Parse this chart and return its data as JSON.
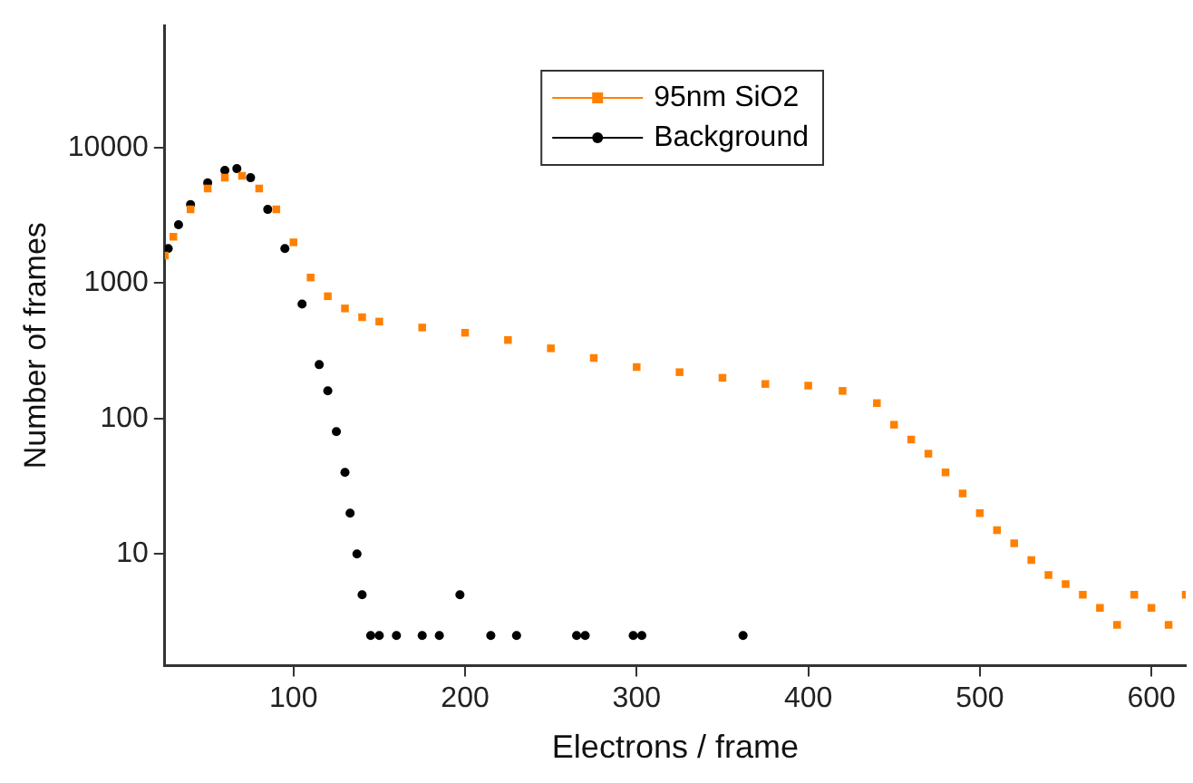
{
  "chart_data": {
    "type": "scatter",
    "xlabel": "Electrons / frame",
    "ylabel": "Number of frames",
    "log": "y",
    "xlim": [
      25,
      620
    ],
    "ylim": [
      1.5,
      80000
    ],
    "xticks": [
      100,
      200,
      300,
      400,
      500,
      600
    ],
    "yticks": [
      10,
      100,
      1000,
      10000
    ],
    "grid": false,
    "legend": "top right",
    "series": [
      {
        "name": "95nm SiO2",
        "color": "#ff8000",
        "marker": "square",
        "x": [
          25,
          30,
          40,
          50,
          60,
          70,
          80,
          90,
          100,
          110,
          120,
          130,
          140,
          150,
          175,
          200,
          225,
          250,
          275,
          300,
          325,
          350,
          375,
          400,
          420,
          440,
          450,
          460,
          470,
          480,
          490,
          500,
          510,
          520,
          530,
          540,
          550,
          560,
          570,
          580,
          590,
          600,
          610,
          620
        ],
        "values": [
          1600,
          2200,
          3500,
          5000,
          6000,
          6200,
          5000,
          3500,
          2000,
          1100,
          800,
          650,
          560,
          520,
          470,
          430,
          380,
          330,
          280,
          240,
          220,
          200,
          180,
          175,
          160,
          130,
          90,
          70,
          55,
          40,
          28,
          20,
          15,
          12,
          9,
          7,
          6,
          5,
          4,
          3,
          5,
          4,
          3,
          5
        ]
      },
      {
        "name": "Background",
        "color": "#000000",
        "marker": "circle",
        "x": [
          27,
          33,
          40,
          50,
          60,
          67,
          75,
          85,
          95,
          105,
          115,
          120,
          125,
          130,
          133,
          137,
          140,
          145,
          150,
          160,
          175,
          185,
          197,
          215,
          230,
          265,
          270,
          298,
          303,
          362
        ],
        "values": [
          1800,
          2700,
          3800,
          5500,
          6800,
          7000,
          6000,
          3500,
          1800,
          700,
          250,
          160,
          80,
          40,
          20,
          10,
          5,
          2.5,
          2.5,
          2.5,
          2.5,
          2.5,
          5,
          2.5,
          2.5,
          2.5,
          2.5,
          2.5,
          2.5,
          2.5
        ]
      }
    ]
  }
}
